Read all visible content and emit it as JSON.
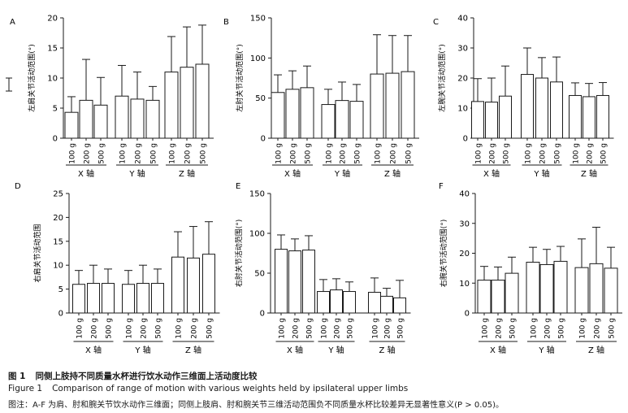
{
  "chart_data": [
    {
      "panel": "A",
      "type": "bar",
      "ylabel": "左肩关节活动范围(°)",
      "ylim": [
        0,
        20
      ],
      "yticks": [
        0,
        5,
        10,
        15,
        20
      ],
      "bar_labels": [
        "100 g",
        "200 g",
        "500 g"
      ],
      "groups": [
        "X 轴",
        "Y 轴",
        "Z 轴"
      ],
      "values": [
        [
          4.3,
          6.3,
          5.5
        ],
        [
          7.0,
          6.5,
          6.3
        ],
        [
          11.0,
          11.8,
          12.3
        ]
      ],
      "errors": [
        [
          2.6,
          6.8,
          4.6
        ],
        [
          5.1,
          4.5,
          2.3
        ],
        [
          5.9,
          6.7,
          6.5
        ]
      ]
    },
    {
      "panel": "B",
      "type": "bar",
      "ylabel": "左肘关节活动范围(°)",
      "ylim": [
        0,
        150
      ],
      "yticks": [
        0,
        50,
        100,
        150
      ],
      "bar_labels": [
        "100 g",
        "200 g",
        "500 g"
      ],
      "groups": [
        "X 轴",
        "Y 轴",
        "Z 轴"
      ],
      "values": [
        [
          57,
          61,
          63
        ],
        [
          42,
          47,
          46
        ],
        [
          80,
          81,
          83
        ]
      ],
      "errors": [
        [
          22,
          23,
          27
        ],
        [
          19,
          23,
          21
        ],
        [
          49,
          47,
          45
        ]
      ]
    },
    {
      "panel": "C",
      "type": "bar",
      "ylabel": "左腕关节活动范围(°)",
      "ylim": [
        0,
        40
      ],
      "yticks": [
        0,
        10,
        20,
        30,
        40
      ],
      "bar_labels": [
        "100 g",
        "200 g",
        "500 g"
      ],
      "groups": [
        "X 轴",
        "Y 轴",
        "Z 轴"
      ],
      "values": [
        [
          12.2,
          12.0,
          14.0
        ],
        [
          21.2,
          20.0,
          18.7
        ],
        [
          14.2,
          13.8,
          14.2
        ]
      ],
      "errors": [
        [
          7.6,
          8.0,
          10.0
        ],
        [
          8.8,
          6.8,
          8.3
        ],
        [
          4.2,
          4.4,
          4.3
        ]
      ]
    },
    {
      "panel": "D",
      "type": "bar",
      "ylabel": "右肩关节活动范围",
      "ylim": [
        0,
        25
      ],
      "yticks": [
        0,
        5,
        10,
        15,
        20,
        25
      ],
      "bar_labels": [
        "100 g",
        "200 g",
        "500 g"
      ],
      "groups": [
        "X 轴",
        "Y 轴",
        "Z 轴"
      ],
      "values": [
        [
          6.0,
          6.2,
          6.2
        ],
        [
          6.0,
          6.2,
          6.2
        ],
        [
          11.7,
          11.5,
          12.3
        ]
      ],
      "errors": [
        [
          2.9,
          3.8,
          3.0
        ],
        [
          2.9,
          3.8,
          3.0
        ],
        [
          5.3,
          6.6,
          6.8
        ]
      ]
    },
    {
      "panel": "E",
      "type": "bar",
      "ylabel": "右肘关节活动范围(°)",
      "ylim": [
        0,
        150
      ],
      "yticks": [
        0,
        50,
        100,
        150
      ],
      "bar_labels": [
        "100 g",
        "200 g",
        "500 g"
      ],
      "groups": [
        "X 轴",
        "Y 轴",
        "Z 轴"
      ],
      "values": [
        [
          80,
          78,
          79
        ],
        [
          27,
          29,
          27
        ],
        [
          26,
          21,
          19
        ]
      ],
      "errors": [
        [
          18,
          15,
          18
        ],
        [
          15,
          14,
          12
        ],
        [
          18,
          10,
          22
        ]
      ]
    },
    {
      "panel": "F",
      "type": "bar",
      "ylabel": "右腕关节活动范围(°)",
      "ylim": [
        0,
        40
      ],
      "yticks": [
        0,
        10,
        20,
        30,
        40
      ],
      "bar_labels": [
        "100 g",
        "200 g",
        "500 g"
      ],
      "groups": [
        "X 轴",
        "Y 轴",
        "Z 轴"
      ],
      "values": [
        [
          11.0,
          11.0,
          13.3
        ],
        [
          17.0,
          16.2,
          17.3
        ],
        [
          15.2,
          16.5,
          15.0
        ]
      ],
      "errors": [
        [
          4.6,
          4.4,
          5.4
        ],
        [
          5.0,
          5.1,
          5.0
        ],
        [
          9.6,
          12.2,
          7.0
        ]
      ]
    }
  ],
  "caption": {
    "label_zh": "图 1",
    "text_zh": "同侧上肢持不同质量水杯进行饮水动作三维面上活动度比较",
    "label_en": "Figure 1",
    "text_en": "Comparison of range of motion with various weights held by ipsilateral upper limbs",
    "note": "图注：A-F 为肩、肘和腕关节饮水动作三维面；同侧上肢肩、肘和腕关节三维活动范围负不同质量水杯比较差异无显著性意义(P > 0.05)。"
  }
}
